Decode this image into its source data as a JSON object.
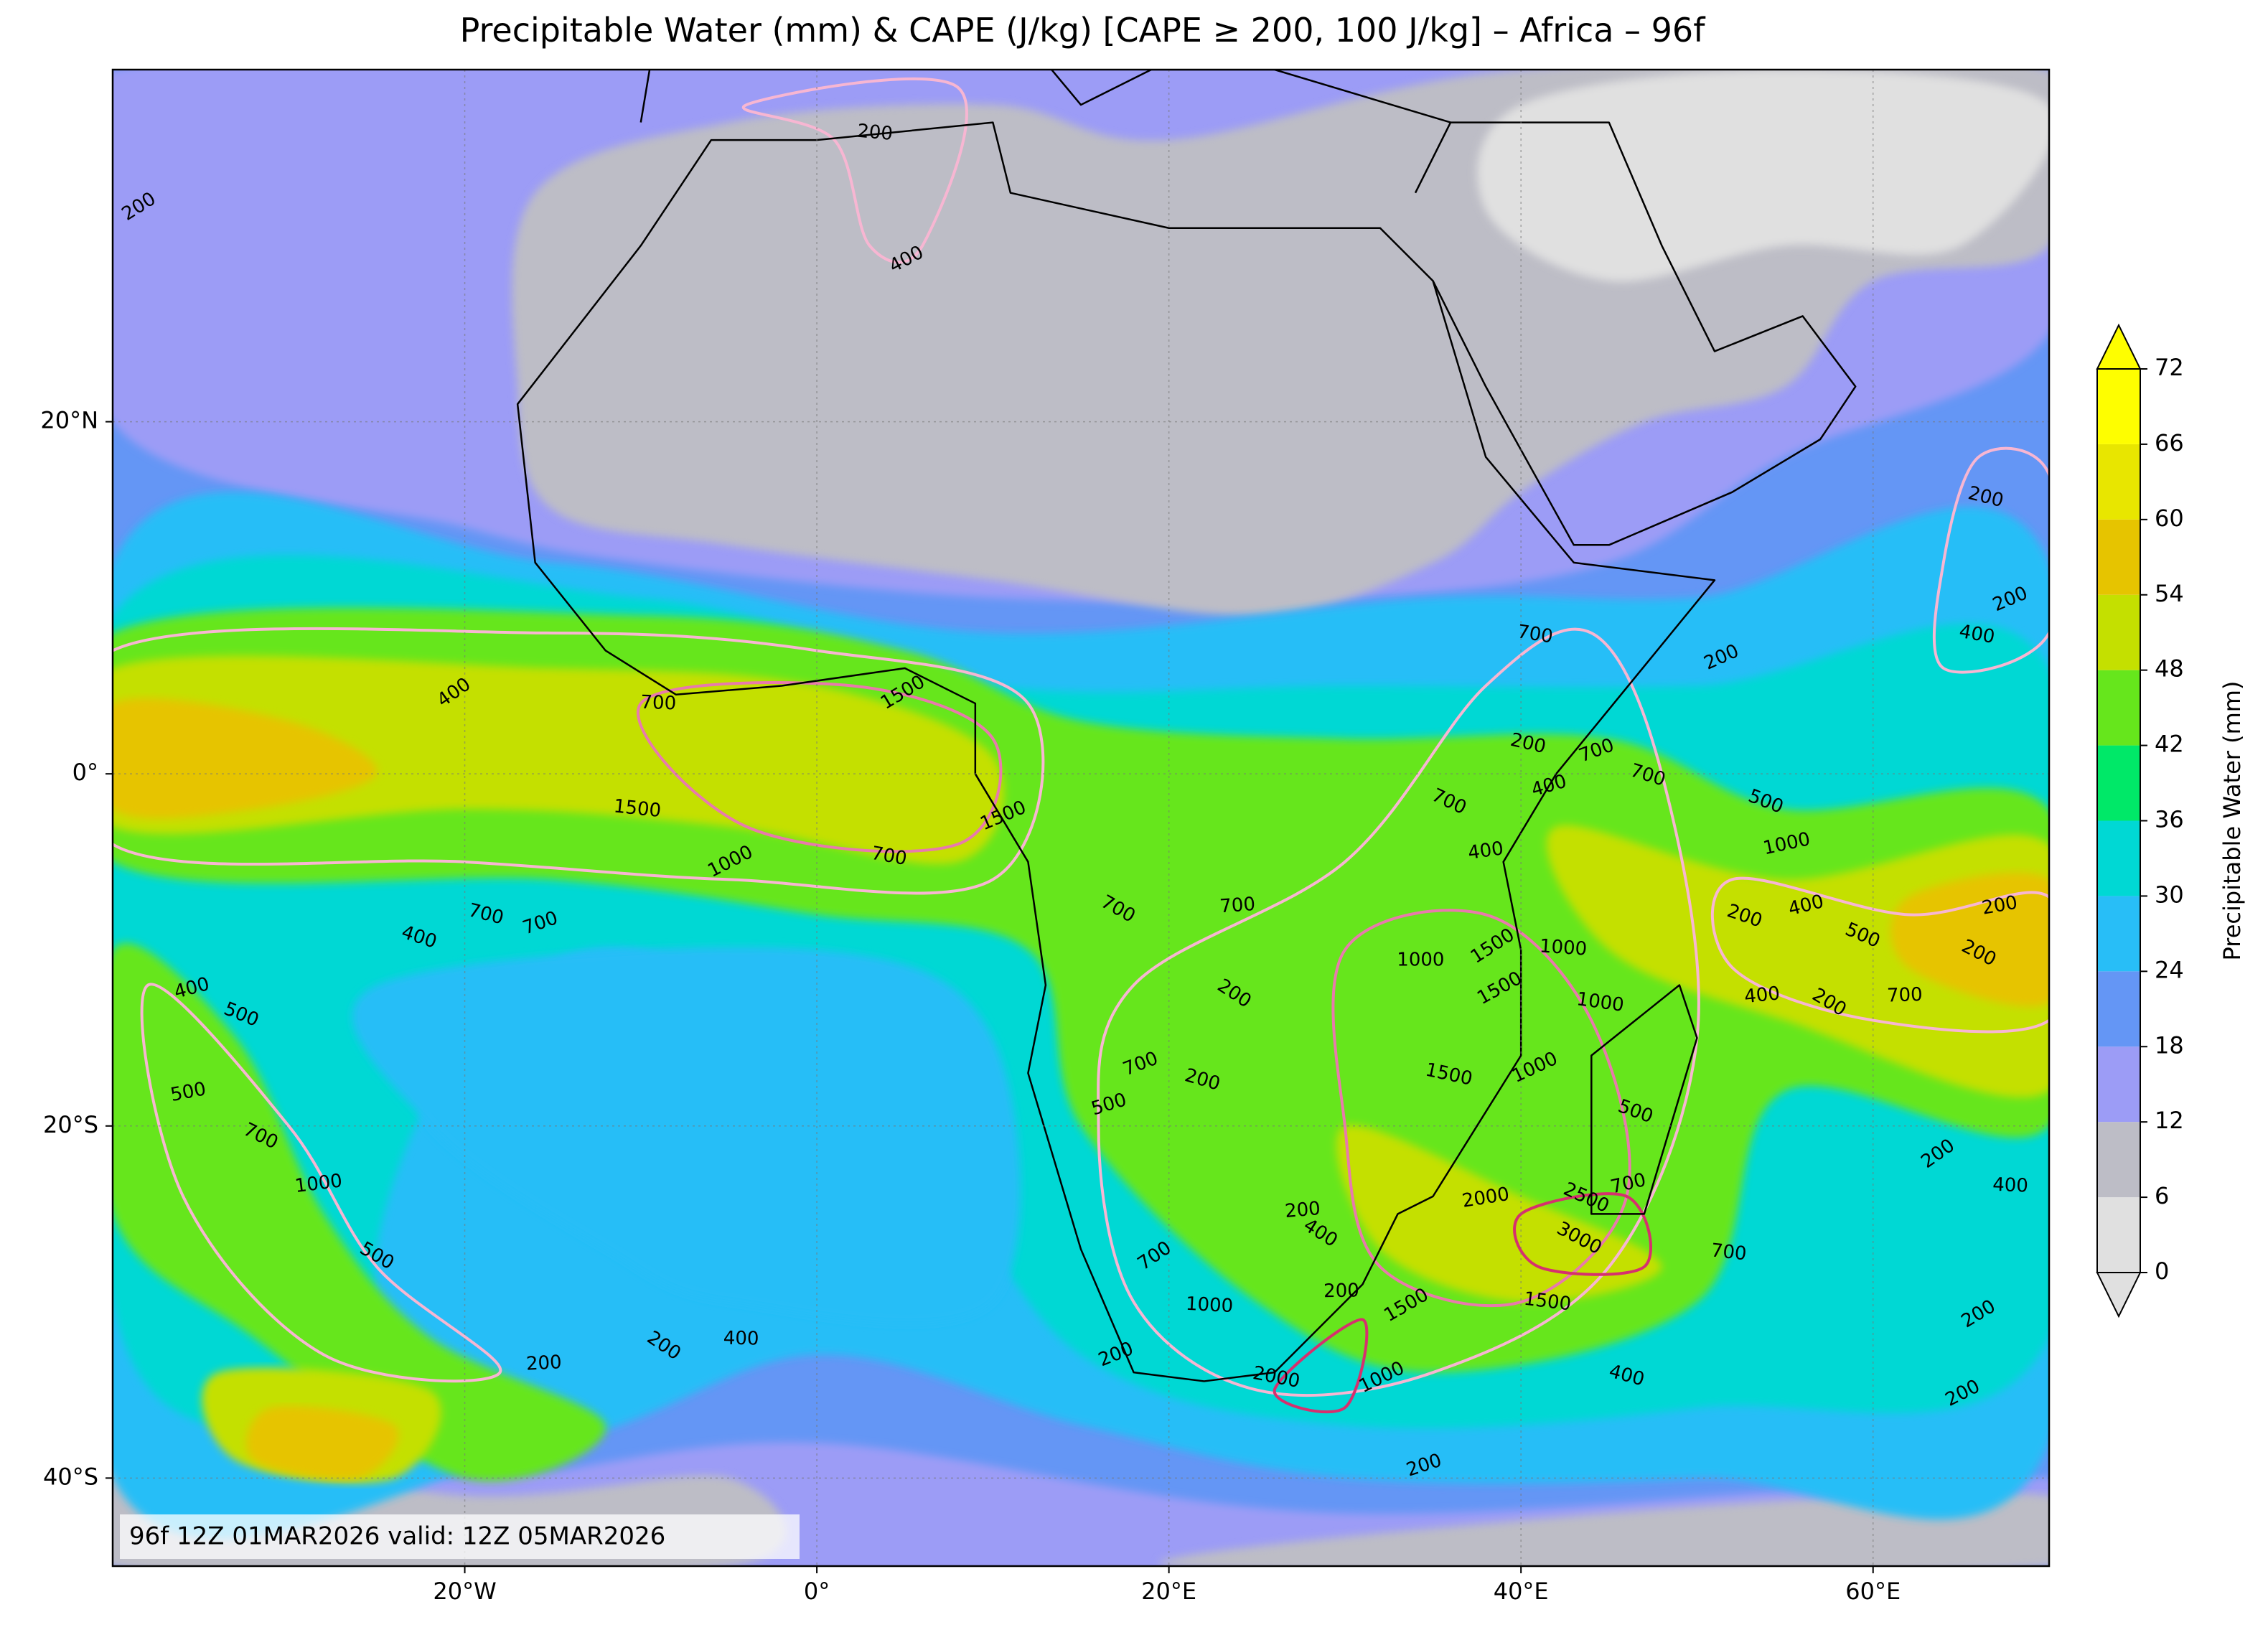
{
  "title": "Precipitable Water (mm) & CAPE (J/kg) [CAPE ≥ 200, 100 J/kg] – Africa – 96f",
  "map": {
    "xlim": [
      -40,
      70
    ],
    "ylim": [
      -45,
      40
    ],
    "xticks": [
      {
        "value": -20,
        "label": "20°W"
      },
      {
        "value": 0,
        "label": "0°"
      },
      {
        "value": 20,
        "label": "20°E"
      },
      {
        "value": 40,
        "label": "40°E"
      },
      {
        "value": 60,
        "label": "60°E"
      }
    ],
    "yticks": [
      {
        "value": 20,
        "label": "20°N"
      },
      {
        "value": 0,
        "label": "0°"
      },
      {
        "value": -20,
        "label": "20°S"
      },
      {
        "value": -40,
        "label": "40°S"
      }
    ],
    "grid": true
  },
  "colorbar": {
    "label": "Precipitable Water (mm)",
    "ticks": [
      0,
      6,
      12,
      18,
      24,
      30,
      36,
      42,
      48,
      54,
      60,
      66,
      72
    ],
    "colors": [
      "#e0e0e0",
      "#bdbdc6",
      "#9c9cf6",
      "#6496f5",
      "#28bef7",
      "#00d8d4",
      "#00e868",
      "#66e61c",
      "#c4e000",
      "#e6c400",
      "#e8e600",
      "#fefe00"
    ],
    "extend": "both"
  },
  "footer": "96f 12Z 01MAR2026 valid: 12Z 05MAR2026",
  "contour_labels": [
    400,
    700,
    1500,
    1500,
    1000,
    700,
    1500,
    700,
    700,
    400,
    400,
    500,
    500,
    700,
    1000,
    500,
    200,
    200,
    400,
    200,
    200,
    400,
    700,
    200,
    200,
    700,
    700,
    400,
    500,
    1000,
    700,
    400,
    700,
    700,
    200,
    1000,
    1500,
    1000,
    1500,
    1000,
    1000,
    1500,
    700,
    200,
    500,
    500,
    700,
    2500,
    2000,
    3000,
    200,
    400,
    200,
    700,
    1000,
    1500,
    1500,
    1000,
    2000,
    200,
    400,
    200,
    200,
    400,
    500,
    200,
    200,
    400,
    200,
    700,
    200,
    400,
    200,
    700,
    200,
    400,
    200,
    200
  ]
}
